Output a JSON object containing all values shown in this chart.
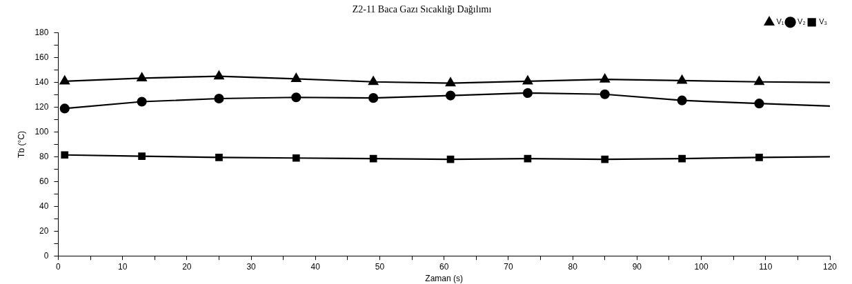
{
  "chart_data": {
    "type": "line",
    "title": "Z2-11 Baca Gazı Sıcaklığı Dağılımı",
    "xlabel": "Zaman (s)",
    "ylabel": "Tb (°C)",
    "x": [
      1,
      13,
      25,
      37,
      49,
      61,
      73,
      85,
      97,
      109,
      120
    ],
    "series": [
      {
        "name": "V₁",
        "color": "#000000",
        "marker": "triangle",
        "values": [
          141,
          143.5,
          145,
          143,
          140.5,
          139.5,
          141,
          142.5,
          141.5,
          140.5,
          140
        ]
      },
      {
        "name": "V₂",
        "color": "#000000",
        "marker": "circle",
        "values": [
          119,
          124.5,
          127,
          128,
          127.5,
          129.5,
          131.5,
          130.5,
          125.5,
          123,
          121
        ]
      },
      {
        "name": "V₃",
        "color": "#000000",
        "marker": "square",
        "values": [
          81.5,
          80.5,
          79.5,
          79,
          78.5,
          78,
          78.5,
          78,
          78.5,
          79.5,
          80
        ]
      }
    ],
    "xlim": [
      0,
      120
    ],
    "xticks": [
      0,
      {
        "value": 5,
        "label": null
      },
      10,
      {
        "value": 15,
        "label": null
      },
      20,
      {
        "value": 25,
        "label": null
      },
      30,
      {
        "value": 35,
        "label": null
      },
      40,
      {
        "value": 45,
        "label": null
      },
      50,
      {
        "value": 55,
        "label": null
      },
      60,
      {
        "value": 65,
        "label": null
      },
      70,
      {
        "value": 75,
        "label": null
      },
      80,
      {
        "value": 85,
        "label": null
      },
      90,
      {
        "value": 95,
        "label": null
      },
      100,
      {
        "value": 105,
        "label": null
      },
      110,
      {
        "value": 115,
        "label": null
      },
      120
    ],
    "ylim": [
      0,
      180
    ],
    "yticks": [
      0,
      {
        "value": 10,
        "label": null
      },
      20,
      {
        "value": 30,
        "label": null
      },
      40,
      {
        "value": 50,
        "label": null
      },
      60,
      {
        "value": 70,
        "label": null
      },
      80,
      {
        "value": 90,
        "label": null
      },
      100,
      {
        "value": 110,
        "label": null
      },
      120,
      {
        "value": 130,
        "label": null
      },
      140,
      {
        "value": 150,
        "label": null
      },
      160,
      {
        "value": 170,
        "label": null
      },
      180
    ],
    "grid": false,
    "legend": "top right",
    "line_style": "solid"
  }
}
